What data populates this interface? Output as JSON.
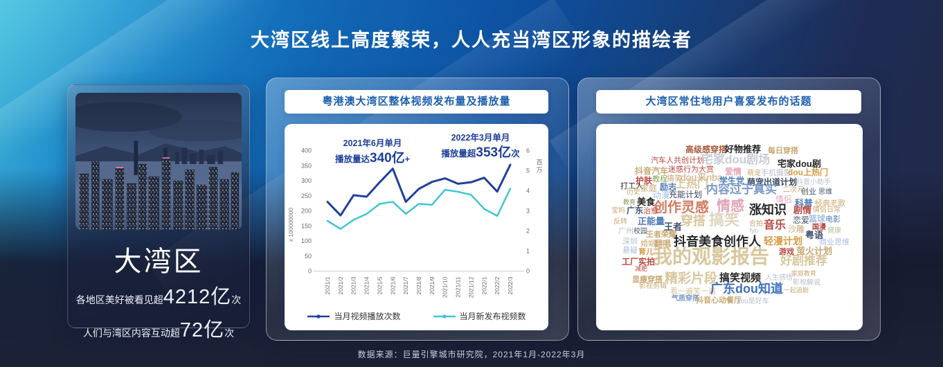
{
  "page": {
    "title": "大湾区线上高度繁荣，人人充当湾区形象的描绘者",
    "footer": "数据来源：巨量引擎城市研究院，2021年1月-2022年3月"
  },
  "region_card": {
    "name": "大湾区",
    "stats": [
      {
        "prefix": "各地区美好被看见超",
        "value": "4212亿",
        "suffix": "次"
      },
      {
        "prefix": "人们与湾区内容互动超",
        "value": "72亿",
        "suffix": "次"
      }
    ]
  },
  "chart_card": {
    "header": "粤港澳大湾区整体视频发布量及播放量"
  },
  "chart_data": {
    "type": "line",
    "title": "粤港澳大湾区整体视频发布量及播放量",
    "categories": [
      "2021/1",
      "2021/2",
      "2021/3",
      "2021/4",
      "2021/5",
      "2021/6",
      "2021/7",
      "2021/8",
      "2021/9",
      "2021/10",
      "2021/11",
      "2021/12",
      "2022/1",
      "2022/2",
      "2022/3"
    ],
    "series": [
      {
        "name": "当月视频播放次数",
        "axis": "left",
        "color": "#20409a",
        "values": [
          230,
          185,
          252,
          247,
          295,
          340,
          230,
          273,
          296,
          308,
          290,
          295,
          310,
          264,
          353
        ]
      },
      {
        "name": "当月新发布视频数",
        "axis": "right",
        "color": "#40c4d4",
        "values": [
          2.5,
          2.1,
          2.55,
          2.85,
          3.35,
          3.45,
          2.85,
          3.35,
          3.3,
          4.05,
          3.95,
          3.8,
          3.1,
          2.75,
          4.1
        ]
      }
    ],
    "left_axis": {
      "label": "x 100000000",
      "min": 0,
      "max": 400,
      "step": 50
    },
    "right_axis": {
      "label": "百万",
      "min": 0,
      "max": 6,
      "step": 1
    },
    "annotations": [
      {
        "line1": "2021年6月单月",
        "prefix": "播放量达",
        "value": "340亿",
        "suffix": "+"
      },
      {
        "line1": "2022年3月单月",
        "prefix": "播放量超",
        "value": "353亿",
        "suffix": "次"
      }
    ],
    "legend_position": "bottom",
    "grid": false
  },
  "topics_card": {
    "header": "大湾区常住地用户喜爱发布的话题",
    "palette": {
      "black": "#262626",
      "dark": "#44526b",
      "navy": "#37445f",
      "gray": "#b7bdc7",
      "lightgray": "#c7cdd6",
      "tan": "#c8a873",
      "khaki": "#d8c69c",
      "palegold": "#ddd5bf",
      "red": "#b8463e",
      "rust": "#a85a3a",
      "salmon": "#d27a5f",
      "pink": "#e5a4b8",
      "blue": "#4d7cb8",
      "steelblue": "#7b99c8",
      "brightblue": "#3f72bd",
      "lightblue": "#a6bedf",
      "green": "#86a058",
      "orange": "#d89a45",
      "palegreen": "#b9c394"
    },
    "words": [
      [
        "高级感穿搭",
        129,
        31,
        12,
        "rust",
        1
      ],
      [
        "好物推荐",
        186,
        30,
        13,
        "black",
        1
      ],
      [
        "每日穿搭",
        248,
        34,
        11,
        "tan",
        1
      ],
      [
        "汽车人共创计划",
        79,
        48,
        11,
        "red",
        0
      ],
      [
        "宅家dou剧场",
        152,
        43,
        17,
        "lightgray",
        1
      ],
      [
        "宅家dou剧",
        262,
        51,
        13,
        "black",
        1
      ],
      [
        "抖音汽车",
        56,
        62,
        12,
        "tan",
        1
      ],
      [
        "迷惑行为大赏",
        104,
        61,
        11,
        "red",
        0
      ],
      [
        "爱情",
        186,
        63,
        12,
        "pink",
        1
      ],
      [
        "萌宠",
        218,
        67,
        10,
        "tan",
        0
      ],
      [
        "手机摄影",
        238,
        66,
        11,
        "gray",
        0
      ],
      [
        "dou上热门",
        277,
        64,
        12,
        "orange",
        1
      ],
      [
        "护肤",
        57,
        76,
        12,
        "red",
        1
      ],
      [
        "教程",
        81,
        75,
        11,
        "green",
        0
      ],
      [
        "搞笑",
        102,
        74,
        11,
        "tan",
        0
      ],
      [
        "dou来nba",
        122,
        70,
        14,
        "tan",
        0
      ],
      [
        "学生党",
        178,
        76,
        12,
        "blue",
        1
      ],
      [
        "萌宠出道计划",
        218,
        78,
        12,
        "navy",
        1
      ],
      [
        "抖音小助手",
        289,
        80,
        10,
        "gray",
        0
      ],
      [
        "打工人",
        35,
        85,
        11,
        "black",
        0
      ],
      [
        "家庭",
        64,
        87,
        12,
        "tan",
        0
      ],
      [
        "励志",
        92,
        85,
        12,
        "blue",
        1
      ],
      [
        "上热门",
        114,
        80,
        16,
        "khaki",
        1
      ],
      [
        "内容过于真实",
        159,
        86,
        17,
        "steelblue",
        1
      ],
      [
        "历史",
        44,
        94,
        10,
        "tan",
        0
      ],
      [
        "动漫",
        82,
        97,
        12,
        "lightblue",
        0
      ],
      [
        "充能计划",
        105,
        96,
        12,
        "navy",
        0
      ],
      [
        "二次元",
        270,
        91,
        10,
        "tan",
        0
      ],
      [
        "创业",
        296,
        93,
        11,
        "dark",
        0
      ],
      [
        "思维",
        321,
        94,
        10,
        "dark",
        0
      ],
      [
        "教育",
        39,
        109,
        9,
        "green",
        0
      ],
      [
        "美食",
        59,
        106,
        13,
        "black",
        1
      ],
      [
        "创作灵感",
        83,
        111,
        20,
        "salmon",
        1
      ],
      [
        "情感",
        174,
        109,
        20,
        "pink",
        1
      ],
      [
        "宝妈",
        22,
        121,
        10,
        "tan",
        0
      ],
      [
        "广东",
        44,
        119,
        12,
        "dark",
        1
      ],
      [
        "治愈",
        68,
        121,
        11,
        "red",
        0
      ],
      [
        "情侣",
        259,
        103,
        12,
        "pink",
        0
      ],
      [
        "科普",
        287,
        108,
        13,
        "blue",
        1
      ],
      [
        "经典老歌",
        316,
        110,
        11,
        "tan",
        0
      ],
      [
        "涨知识",
        221,
        115,
        18,
        "black",
        1
      ],
      [
        "剧情",
        285,
        118,
        13,
        "red",
        1
      ],
      [
        "情侣日常",
        313,
        120,
        10,
        "tan",
        0
      ],
      [
        "反转",
        25,
        137,
        10,
        "tan",
        0
      ],
      [
        "正能量",
        60,
        134,
        13,
        "blue",
        1
      ],
      [
        "王者",
        98,
        142,
        13,
        "dark",
        1
      ],
      [
        "穿搭",
        122,
        131,
        18,
        "khaki",
        1
      ],
      [
        "搞笑",
        163,
        128,
        22,
        "palegold",
        1
      ],
      [
        "恋爱",
        284,
        133,
        12,
        "dark",
        0
      ],
      [
        "篮球",
        307,
        131,
        12,
        "lightblue",
        1
      ],
      [
        "电影",
        331,
        133,
        11,
        "blue",
        0
      ],
      [
        "合拍",
        221,
        140,
        10,
        "tan",
        0
      ],
      [
        "fyp",
        222,
        150,
        9,
        "gray",
        0
      ],
      [
        "音乐",
        242,
        139,
        16,
        "red",
        1
      ],
      [
        "沙雕",
        277,
        146,
        12,
        "tan",
        0
      ],
      [
        "国漫",
        312,
        145,
        10,
        "red",
        1
      ],
      [
        "健康",
        334,
        150,
        10,
        "palegreen",
        0
      ],
      [
        "广州",
        32,
        150,
        11,
        "gray",
        0
      ],
      [
        "校园",
        54,
        151,
        10,
        "dark",
        0
      ],
      [
        "王者荣耀",
        72,
        155,
        11,
        "tan",
        1
      ],
      [
        "深圳",
        38,
        165,
        11,
        "gray",
        0
      ],
      [
        "婚姻",
        64,
        168,
        11,
        "tan",
        0
      ],
      [
        "翻唱",
        84,
        167,
        12,
        "tan",
        1
      ],
      [
        "抖音美食创作人",
        112,
        161,
        18,
        "black",
        1
      ],
      [
        "轻漫计划",
        242,
        162,
        14,
        "orange",
        1
      ],
      [
        "粤语",
        302,
        154,
        13,
        "dark",
        1
      ],
      [
        "商业思维",
        322,
        166,
        11,
        "lightblue",
        0
      ],
      [
        "悬疑",
        38,
        178,
        11,
        "lightblue",
        0
      ],
      [
        "育儿",
        61,
        180,
        11,
        "orange",
        1
      ],
      [
        "我的观影报告",
        82,
        178,
        28,
        "khaki",
        1
      ],
      [
        "游戏",
        264,
        180,
        11,
        "red",
        1
      ],
      [
        "萤火计划",
        289,
        177,
        13,
        "tan",
        1
      ],
      [
        "好剧推荐",
        266,
        189,
        17,
        "khaki",
        1
      ],
      [
        "工厂实拍",
        37,
        193,
        12,
        "red",
        1
      ],
      [
        "减肥",
        56,
        205,
        9,
        "red",
        0
      ],
      [
        "显瘦穿搭",
        52,
        220,
        11,
        "tan",
        1
      ],
      [
        "影视剪辑",
        62,
        230,
        10,
        "tan",
        0
      ],
      [
        "精彩片段",
        99,
        214,
        19,
        "khaki",
        1
      ],
      [
        "搞笑视频",
        178,
        215,
        15,
        "black",
        1
      ],
      [
        "人生感悟",
        244,
        218,
        10,
        "gray",
        0
      ],
      [
        "家庭教育",
        282,
        212,
        9,
        "tan",
        0
      ],
      [
        "影视解说",
        284,
        225,
        10,
        "gray",
        0
      ],
      [
        "看一遍笑一遍",
        107,
        237,
        11,
        "khaki",
        0
      ],
      [
        "广东dou知道",
        165,
        229,
        18,
        "brightblue",
        1
      ],
      [
        "一起追剧",
        271,
        236,
        9,
        "tan",
        0
      ],
      [
        "气质穿搭",
        109,
        248,
        10,
        "steelblue",
        1
      ],
      [
        "抖音心动餐厅",
        144,
        250,
        11,
        "tan",
        1
      ],
      [
        "dou是好车",
        203,
        252,
        10,
        "gray",
        0
      ]
    ]
  }
}
